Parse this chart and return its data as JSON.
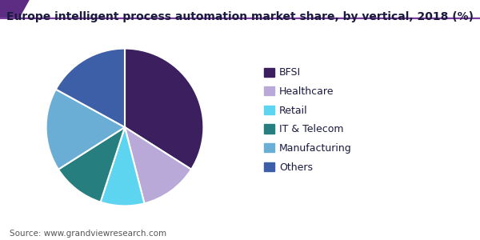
{
  "title": "Europe intelligent process automation market share, by vertical, 2018 (%)",
  "labels": [
    "BFSI",
    "Healthcare",
    "Retail",
    "IT & Telecom",
    "Manufacturing",
    "Others"
  ],
  "values": [
    34,
    12,
    9,
    11,
    17,
    17
  ],
  "colors": [
    "#3b1f5e",
    "#b8a9d9",
    "#5dd4f0",
    "#267e7e",
    "#6aaed6",
    "#3d5fa8"
  ],
  "legend_labels": [
    "BFSI",
    "Healthcare",
    "Retail",
    "IT & Telecom",
    "Manufacturing",
    "Others"
  ],
  "source_text": "Source: www.grandviewresearch.com",
  "title_color": "#1a1a3e",
  "background_color": "#ffffff",
  "title_fontsize": 10,
  "legend_fontsize": 9,
  "source_fontsize": 7.5,
  "startangle": 90,
  "wedge_edge_color": "#ffffff",
  "header_bar_color": "#5c2d82",
  "header_line_color": "#7b3fa0"
}
